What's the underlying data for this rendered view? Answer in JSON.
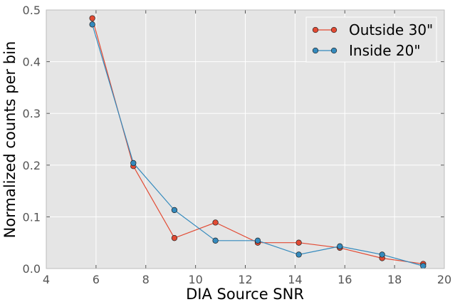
{
  "chart_data": {
    "type": "line",
    "title": "",
    "xlabel": "DIA Source SNR",
    "ylabel": "Normalized counts per bin",
    "xlim": [
      4,
      20
    ],
    "ylim": [
      0.0,
      0.5
    ],
    "xticks": [
      4,
      6,
      8,
      10,
      12,
      14,
      16,
      18,
      20
    ],
    "xtick_labels": [
      "4",
      "6",
      "8",
      "10",
      "12",
      "14",
      "16",
      "18",
      "20"
    ],
    "yticks": [
      0.0,
      0.1,
      0.2,
      0.3,
      0.4,
      0.5
    ],
    "ytick_labels": [
      "0.0",
      "0.1",
      "0.2",
      "0.3",
      "0.4",
      "0.5"
    ],
    "grid": true,
    "legend_position": "top-right",
    "background": "#e5e5e5",
    "x": [
      5.85,
      7.5,
      9.15,
      10.8,
      12.5,
      14.15,
      15.8,
      17.5,
      19.15
    ],
    "series": [
      {
        "name": "Outside 30\"",
        "color": "#e24a33",
        "values": [
          0.484,
          0.198,
          0.059,
          0.089,
          0.05,
          0.05,
          0.04,
          0.02,
          0.009
        ]
      },
      {
        "name": "Inside 20\"",
        "color": "#348abd",
        "values": [
          0.472,
          0.204,
          0.113,
          0.054,
          0.054,
          0.027,
          0.043,
          0.027,
          0.005
        ]
      }
    ]
  }
}
